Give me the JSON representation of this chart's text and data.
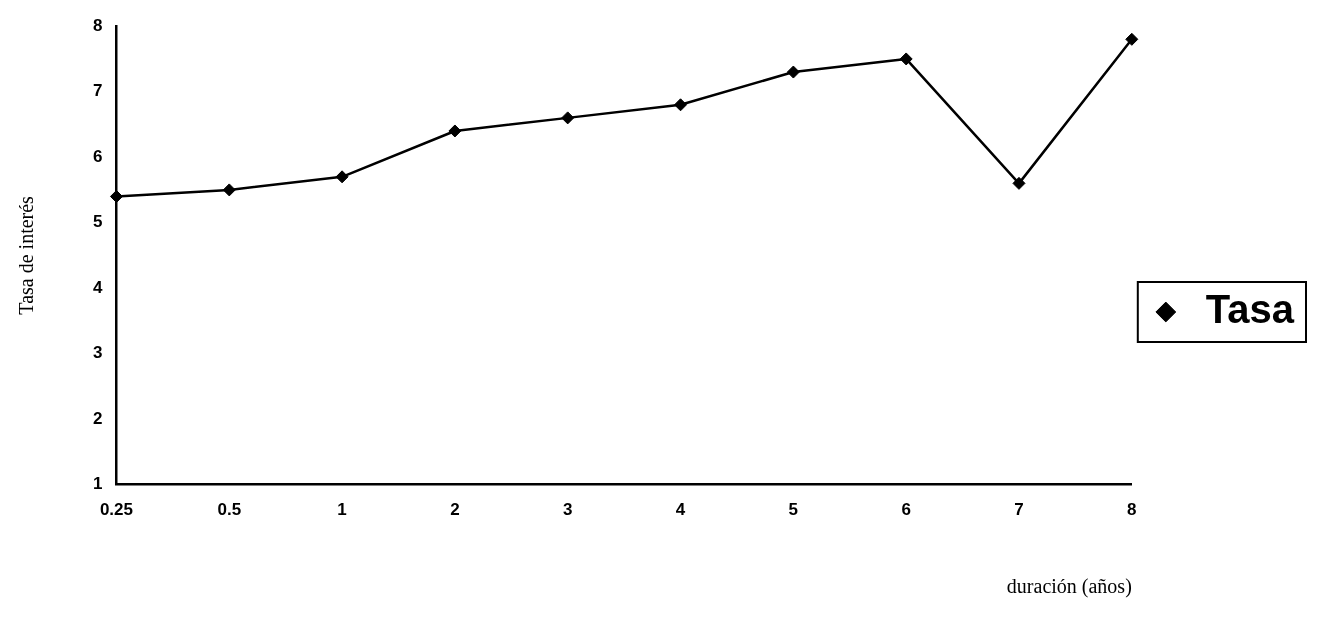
{
  "chart_data": {
    "type": "line",
    "xlabel": "duración (años)",
    "ylabel": "Tasa de interés",
    "categories": [
      "0.25",
      "0.5",
      "1",
      "2",
      "3",
      "4",
      "5",
      "6",
      "7",
      "8"
    ],
    "series": [
      {
        "name": "Tasa",
        "color": "#000000",
        "values": [
          5.4,
          5.5,
          5.7,
          6.4,
          6.6,
          6.8,
          7.3,
          7.5,
          5.6,
          7.8
        ]
      }
    ],
    "ylim": [
      1,
      8
    ],
    "yticks": [
      1,
      2,
      3,
      4,
      5,
      6,
      7,
      8
    ],
    "grid": false,
    "legend": "right",
    "marker": "diamond",
    "line_style": "solid"
  }
}
